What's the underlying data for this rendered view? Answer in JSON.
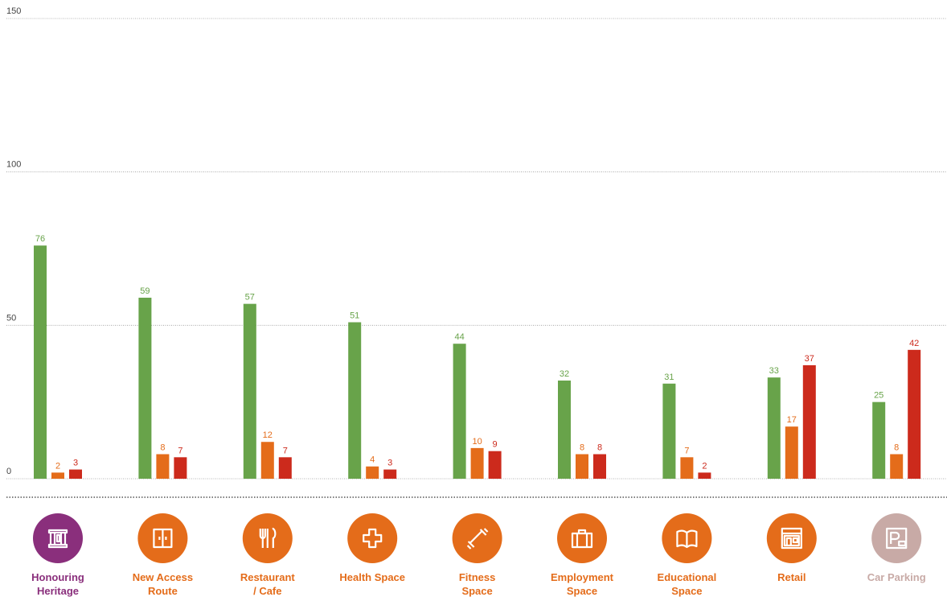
{
  "chart_data": {
    "type": "bar",
    "categories": [
      "Honouring\nHeritage",
      "New Access\nRoute",
      "Restaurant\n/ Cafe",
      "Health Space",
      "Fitness\nSpace",
      "Employment\nSpace",
      "Educational\nSpace",
      "Retail",
      "Car Parking"
    ],
    "category_colors": [
      "#8a2f7c",
      "#e46c1a",
      "#e46c1a",
      "#e46c1a",
      "#e46c1a",
      "#e46c1a",
      "#e46c1a",
      "#e46c1a",
      "#c8aaa6"
    ],
    "series": [
      {
        "color": "#68a34a",
        "values": [
          76,
          59,
          57,
          51,
          44,
          32,
          31,
          33,
          25
        ]
      },
      {
        "color": "#e46c1a",
        "values": [
          2,
          8,
          12,
          4,
          10,
          8,
          7,
          17,
          8
        ]
      },
      {
        "color": "#cc2a1c",
        "values": [
          3,
          7,
          7,
          3,
          9,
          8,
          2,
          37,
          42
        ]
      }
    ],
    "ylim": [
      0,
      150
    ],
    "yticks": [
      0,
      50,
      100,
      150
    ],
    "grid": true
  }
}
